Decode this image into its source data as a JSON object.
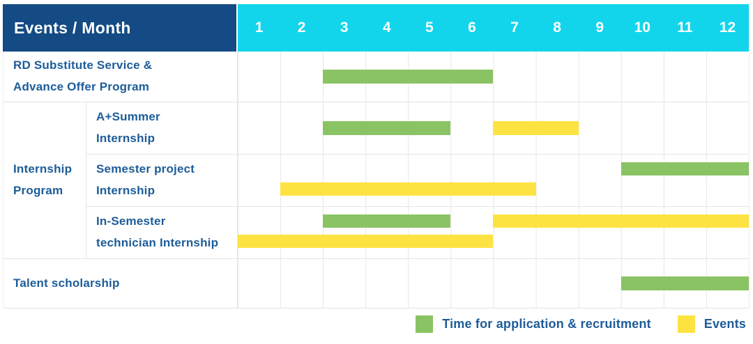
{
  "colors": {
    "navy": "#144b84",
    "cyan": "#12d5ec",
    "green": "#8ac364",
    "yellow": "#fde342",
    "label_blue": "#1d5c99",
    "grid_line": "#e7e7e7"
  },
  "header": {
    "title": "Events / Month",
    "months": [
      "1",
      "2",
      "3",
      "4",
      "5",
      "6",
      "7",
      "8",
      "9",
      "10",
      "11",
      "12"
    ]
  },
  "legend": [
    {
      "key": "green",
      "label": "Time for application & recruitment"
    },
    {
      "key": "yellow",
      "label": "Events"
    }
  ],
  "chart_data": {
    "type": "bar",
    "subtype": "gantt-schedule",
    "x_axis": {
      "label": "Month",
      "categories": [
        1,
        2,
        3,
        4,
        5,
        6,
        7,
        8,
        9,
        10,
        11,
        12
      ],
      "range": [
        1,
        12
      ]
    },
    "series_legend": [
      {
        "name": "Time for application & recruitment",
        "color": "#8ac364"
      },
      {
        "name": "Events",
        "color": "#fde342"
      }
    ],
    "group": {
      "label": "Internship\nProgram",
      "plain_label": "Internship Program",
      "spans_rows": [
        1,
        2,
        3
      ]
    },
    "rows": [
      {
        "label": "RD Substitute Service &\nAdvance Offer Program",
        "plain_label": "RD Substitute Service & Advance Offer Program",
        "group": null,
        "bands": 1,
        "bars": [
          {
            "series": "Time for application & recruitment",
            "color": "green",
            "start_month": 3,
            "end_month": 6,
            "band": 0
          }
        ]
      },
      {
        "label": "A+Summer\nInternship",
        "plain_label": "A+Summer Internship",
        "group": "Internship Program",
        "bands": 1,
        "bars": [
          {
            "series": "Time for application & recruitment",
            "color": "green",
            "start_month": 3,
            "end_month": 5,
            "band": 0
          },
          {
            "series": "Events",
            "color": "yellow",
            "start_month": 7,
            "end_month": 8,
            "band": 0
          }
        ]
      },
      {
        "label": "Semester project\nInternship",
        "plain_label": "Semester project Internship",
        "group": "Internship Program",
        "bands": 2,
        "bars": [
          {
            "series": "Time for application & recruitment",
            "color": "green",
            "start_month": 10,
            "end_month": 12,
            "band": 0
          },
          {
            "series": "Events",
            "color": "yellow",
            "start_month": 2,
            "end_month": 7,
            "band": 1
          }
        ]
      },
      {
        "label": "In-Semester\ntechnician Internship",
        "plain_label": "In-Semester technician Internship",
        "group": "Internship Program",
        "bands": 2,
        "bars": [
          {
            "series": "Time for application & recruitment",
            "color": "green",
            "start_month": 3,
            "end_month": 5,
            "band": 0
          },
          {
            "series": "Events",
            "color": "yellow",
            "start_month": 7,
            "end_month": 12,
            "band": 0
          },
          {
            "series": "Events",
            "color": "yellow",
            "start_month": 1,
            "end_month": 6,
            "band": 1
          }
        ]
      },
      {
        "label": "Talent scholarship",
        "plain_label": "Talent scholarship",
        "group": null,
        "bands": 1,
        "bars": [
          {
            "series": "Time for application & recruitment",
            "color": "green",
            "start_month": 10,
            "end_month": 12,
            "band": 0
          }
        ]
      }
    ]
  }
}
